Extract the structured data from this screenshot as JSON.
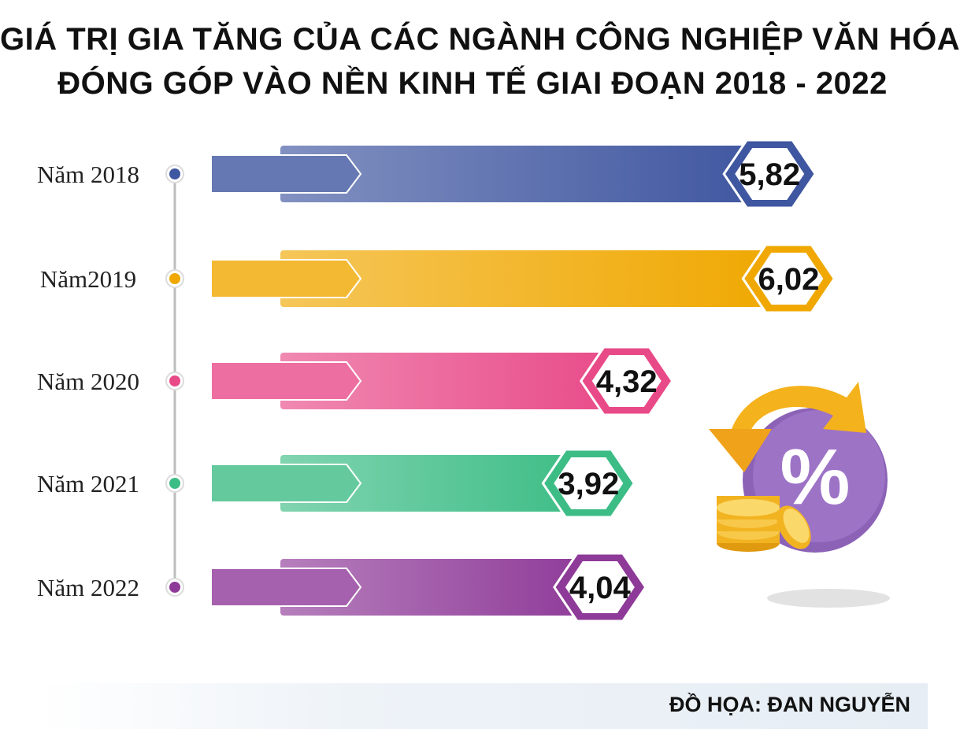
{
  "header": {
    "title_line1": "GIÁ TRỊ GIA TĂNG CỦA CÁC NGÀNH CÔNG NGHIỆP VĂN HÓA",
    "title_line2": "ĐÓNG GÓP VÀO NỀN KINH TẾ GIAI ĐOẠN 2018 - 2022"
  },
  "chart_data": {
    "type": "bar",
    "orientation": "horizontal",
    "title": "GIÁ TRỊ GIA TĂNG CỦA CÁC NGÀNH CÔNG NGHIỆP VĂN HÓA ĐÓNG GÓP VÀO NỀN KINH TẾ GIAI ĐOẠN 2018 - 2022",
    "categories": [
      "Năm 2018",
      "Năm2019",
      "Năm 2020",
      "Năm 2021",
      "Năm 2022"
    ],
    "values": [
      5.82,
      6.02,
      4.32,
      3.92,
      4.04
    ],
    "value_labels": [
      "5,82",
      "6,02",
      "4,32",
      "3,92",
      "4,04"
    ],
    "colors": [
      "#3f56a0",
      "#f0a800",
      "#e84a88",
      "#3dbd86",
      "#8e3a98"
    ],
    "xlabel": "",
    "ylabel": "",
    "grid": false,
    "legend": "none"
  },
  "decoration": {
    "icon": "percent-coin-icon",
    "icon_text": "%"
  },
  "footer": {
    "credit": "ĐỒ HỌA: ĐAN NGUYỄN"
  }
}
